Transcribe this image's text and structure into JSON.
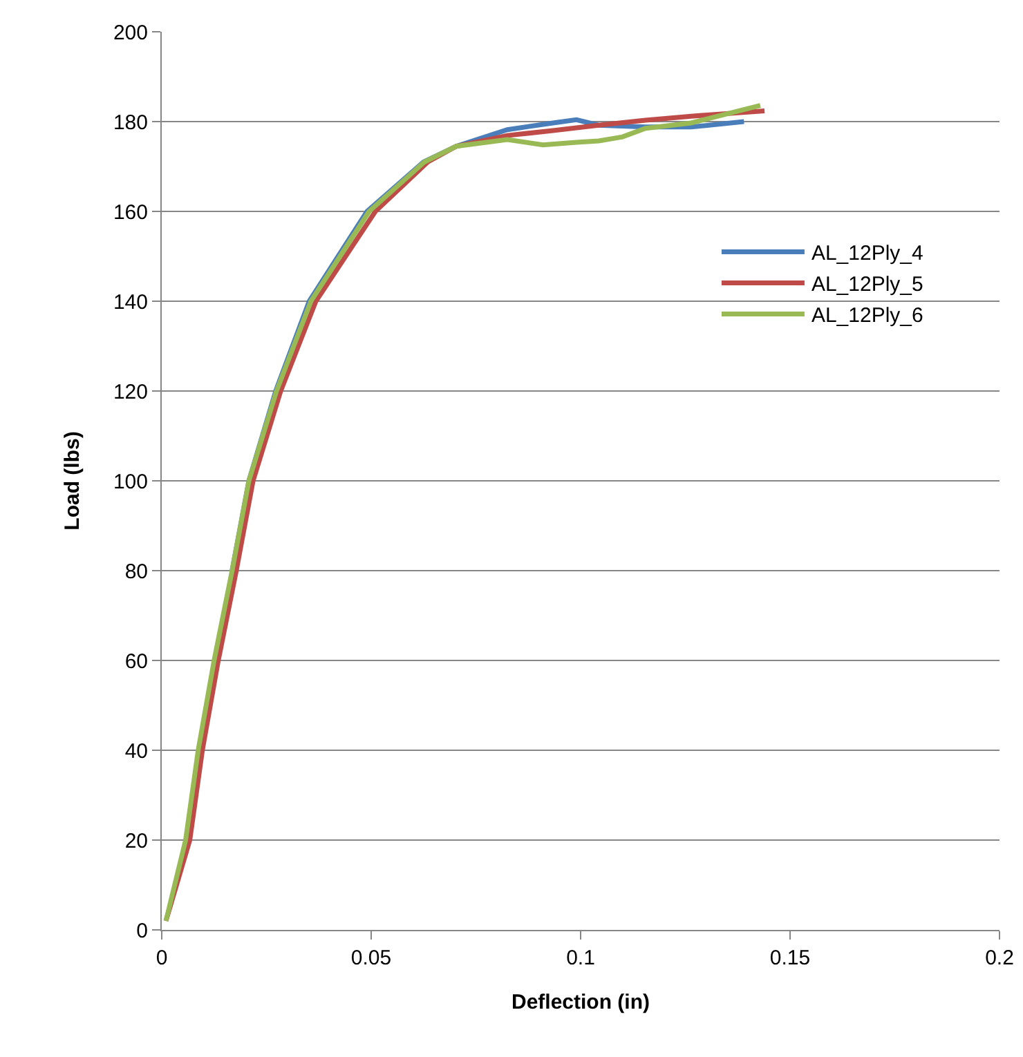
{
  "chart_data": {
    "type": "line",
    "xlabel": "Deflection (in)",
    "ylabel": "Load (lbs)",
    "xlim": [
      0,
      0.2
    ],
    "xticks": [
      0,
      0.05,
      0.1,
      0.15,
      0.2
    ],
    "ylim": [
      0,
      200
    ],
    "yticks": [
      0,
      20,
      40,
      60,
      80,
      100,
      120,
      140,
      160,
      180,
      200
    ],
    "grid": "y",
    "legend": "right",
    "marker": "none",
    "line_style": "solid",
    "series": [
      {
        "name": "AL_12Ply_4",
        "color": "#4a7ebb",
        "x": [
          0.0168,
          0.0208,
          0.0272,
          0.0352,
          0.049,
          0.0625,
          0.0703,
          0.0825,
          0.0934,
          0.099,
          0.1043,
          0.1155,
          0.1264,
          0.139
        ],
        "values": [
          80,
          100,
          120,
          140,
          160,
          171,
          174.5,
          178.2,
          179.7,
          180.4,
          179.2,
          178.8,
          178.8,
          180
        ]
      },
      {
        "name": "AL_12Ply_5",
        "color": "#be4b48",
        "x": [
          0.001,
          0.0067,
          0.0097,
          0.0135,
          0.0178,
          0.0218,
          0.0284,
          0.0368,
          0.051,
          0.0635,
          0.0703,
          0.0825,
          0.0934,
          0.1043,
          0.1155,
          0.1264,
          0.1439
        ],
        "values": [
          2,
          20,
          40,
          60,
          80,
          100,
          120,
          140,
          160,
          171,
          174.5,
          176.9,
          178,
          179.2,
          180.3,
          181.2,
          182.4
        ]
      },
      {
        "name": "AL_12Ply_6",
        "color": "#98b954",
        "x": [
          0.001,
          0.0057,
          0.0087,
          0.0125,
          0.0168,
          0.0208,
          0.0274,
          0.0356,
          0.0495,
          0.0627,
          0.0703,
          0.0825,
          0.091,
          0.099,
          0.1043,
          0.11,
          0.1155,
          0.1264,
          0.1429
        ],
        "values": [
          2,
          20,
          40,
          60,
          80,
          100,
          120,
          140,
          160,
          171,
          174.5,
          176,
          174.8,
          175.4,
          175.7,
          176.6,
          178.5,
          179.7,
          183.6
        ]
      }
    ]
  }
}
